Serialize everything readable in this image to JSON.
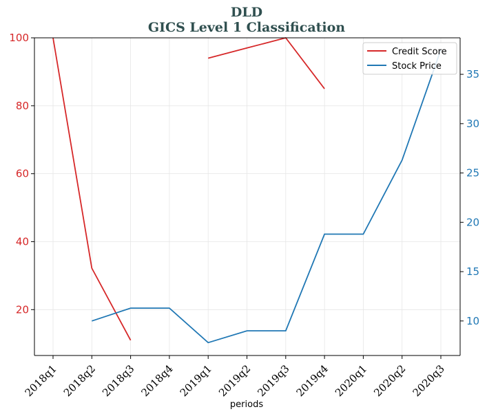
{
  "chart_data": {
    "type": "line",
    "title": "DLD",
    "subtitle": "GICS Level 1 Classification",
    "xlabel": "periods",
    "categories": [
      "2018q1",
      "2018q2",
      "2018q3",
      "2018q4",
      "2019q1",
      "2019q2",
      "2019q3",
      "2019q4",
      "2020q1",
      "2020q2",
      "2020q3"
    ],
    "left_axis": {
      "ylim": [
        6.5,
        100
      ],
      "ticks": [
        20,
        40,
        60,
        80,
        100
      ],
      "color": "#d62728"
    },
    "right_axis": {
      "ylim": [
        6.5,
        38.7
      ],
      "ticks": [
        10,
        15,
        20,
        25,
        30,
        35
      ],
      "color": "#1f77b4"
    },
    "series": [
      {
        "name": "Credit Score",
        "axis": "left",
        "color": "#d62728",
        "values": [
          100,
          32.2,
          11,
          null,
          94,
          97,
          100,
          85,
          null,
          null,
          null
        ]
      },
      {
        "name": "Stock Price",
        "axis": "right",
        "color": "#1f77b4",
        "values": [
          null,
          10.0,
          11.3,
          11.3,
          7.8,
          9.0,
          9.0,
          18.8,
          18.8,
          26.3,
          37.5
        ]
      }
    ],
    "grid": true,
    "legend": "top-right"
  }
}
